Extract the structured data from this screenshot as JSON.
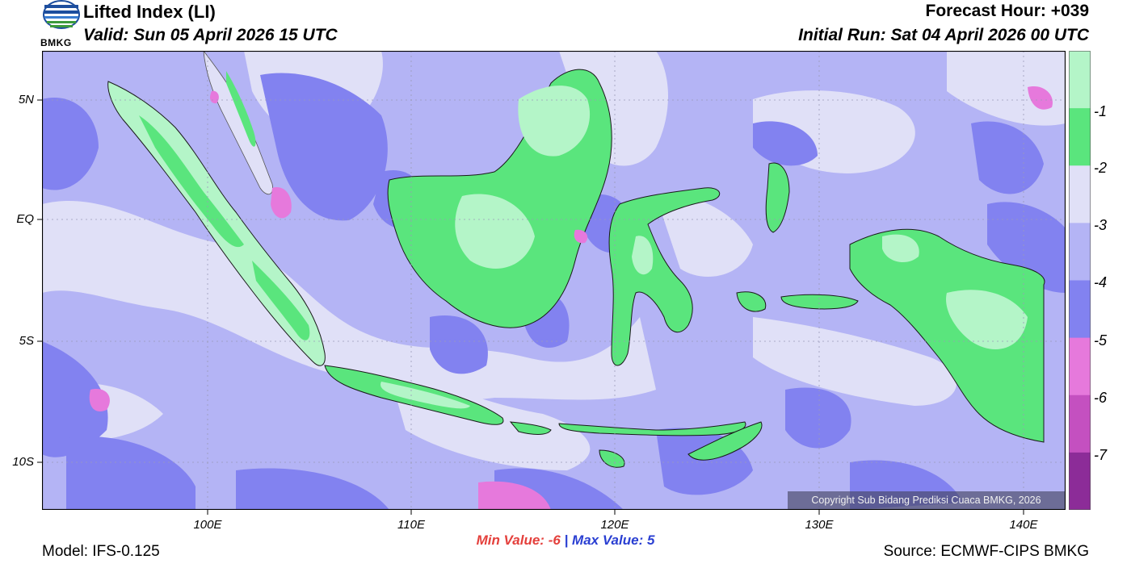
{
  "header": {
    "title": "Lifted Index (LI)",
    "valid": "Valid: Sun 05 April 2026 15 UTC",
    "forecast_hour": "Forecast Hour: +039",
    "initial_run": "Initial Run: Sat 04 April 2026 00 UTC",
    "logo_text": "BMKG"
  },
  "map": {
    "lat_labels": [
      "5N",
      "EQ",
      "5S",
      "10S"
    ],
    "lon_labels": [
      "100E",
      "110E",
      "120E",
      "130E",
      "140E"
    ],
    "copyright": "Copyright Sub Bidang Prediksi Cuaca BMKG, 2026"
  },
  "colorbar": {
    "labels": [
      "-1",
      "-2",
      "-3",
      "-4",
      "-5",
      "-6",
      "-7"
    ],
    "colors": [
      "#b4f5c8",
      "#5ae57d",
      "#e0e0f7",
      "#b4b4f5",
      "#8282f0",
      "#e679dc",
      "#c450c0",
      "#8c2c98"
    ]
  },
  "footer": {
    "min_label": "Min Value:",
    "min_value": "-6",
    "separator": "|",
    "max_label": "Max Value:",
    "max_value": "5",
    "model": "Model: IFS-0.125",
    "source": "Source: ECMWF-CIPS BMKG"
  }
}
